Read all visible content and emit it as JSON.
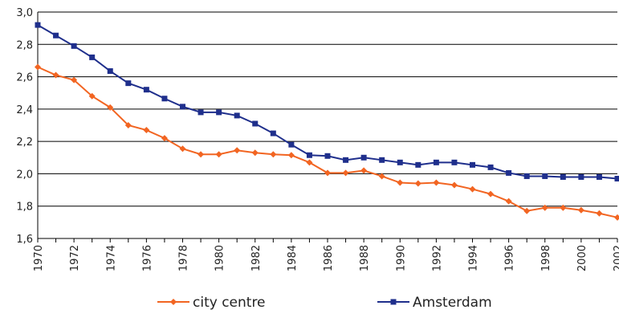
{
  "chart_data": {
    "type": "line",
    "title": "",
    "xlabel": "",
    "ylabel": "",
    "x": [
      1970,
      1971,
      1972,
      1973,
      1974,
      1975,
      1976,
      1977,
      1978,
      1979,
      1980,
      1981,
      1982,
      1983,
      1984,
      1985,
      1986,
      1987,
      1988,
      1989,
      1990,
      1991,
      1992,
      1993,
      1994,
      1995,
      1996,
      1997,
      1998,
      1999,
      2000,
      2001,
      2002
    ],
    "xlim": [
      1970,
      2002
    ],
    "ylim": [
      1.6,
      3.0
    ],
    "yticks": [
      1.6,
      1.8,
      2.0,
      2.2,
      2.4,
      2.6,
      2.8,
      3.0
    ],
    "ytick_labels": [
      "1,6",
      "1,8",
      "2,0",
      "2,2",
      "2,4",
      "2,6",
      "2,8",
      "3,0"
    ],
    "xticks": [
      1970,
      1972,
      1974,
      1976,
      1978,
      1980,
      1982,
      1984,
      1986,
      1988,
      1990,
      1992,
      1994,
      1996,
      1998,
      2000,
      2002
    ],
    "xtick_labels": [
      "1970",
      "1972",
      "1974",
      "1976",
      "1978",
      "1980",
      "1982",
      "1984",
      "1986",
      "1988",
      "1990",
      "1992",
      "1994",
      "1996",
      "1998",
      "2000",
      "2002"
    ],
    "grid": "horizontal",
    "legend_position": "bottom",
    "series": [
      {
        "name": "city centre",
        "color": "#f26522",
        "marker": "diamond",
        "values": [
          2.66,
          2.61,
          2.58,
          2.48,
          2.41,
          2.3,
          2.27,
          2.22,
          2.155,
          2.12,
          2.12,
          2.145,
          2.13,
          2.12,
          2.115,
          2.07,
          2.005,
          2.005,
          2.02,
          1.985,
          1.945,
          1.94,
          1.945,
          1.93,
          1.905,
          1.875,
          1.83,
          1.77,
          1.79,
          1.79,
          1.775,
          1.755,
          1.73
        ]
      },
      {
        "name": "Amsterdam",
        "color": "#1f2f8c",
        "marker": "square",
        "values": [
          2.92,
          2.855,
          2.79,
          2.72,
          2.635,
          2.56,
          2.52,
          2.465,
          2.415,
          2.38,
          2.38,
          2.36,
          2.31,
          2.25,
          2.18,
          2.115,
          2.11,
          2.085,
          2.1,
          2.085,
          2.07,
          2.055,
          2.07,
          2.07,
          2.055,
          2.04,
          2.005,
          1.985,
          1.985,
          1.98,
          1.98,
          1.98,
          1.97
        ]
      }
    ]
  }
}
